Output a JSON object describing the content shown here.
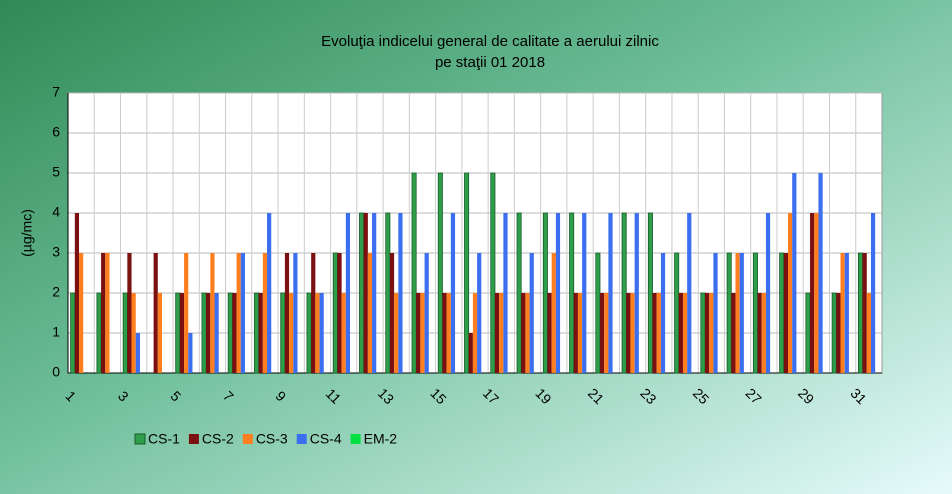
{
  "chart_data": {
    "type": "bar",
    "title": "Evoluţia indicelui general de calitate a aerului zilnic",
    "subtitle": "pe staţii 01 2018",
    "y_label": "(µg/mc)",
    "categories": [
      1,
      null,
      3,
      null,
      5,
      null,
      7,
      null,
      9,
      null,
      11,
      null,
      13,
      null,
      15,
      null,
      17,
      null,
      19,
      null,
      21,
      null,
      23,
      null,
      25,
      null,
      27,
      null,
      29,
      null,
      31
    ],
    "series": [
      {
        "name": "CS-1",
        "color": "#2e9e4a",
        "values": [
          2,
          2,
          2,
          null,
          2,
          2,
          2,
          2,
          2,
          2,
          3,
          4,
          4,
          5,
          5,
          5,
          5,
          4,
          4,
          4,
          3,
          4,
          4,
          3,
          2,
          3,
          3,
          3,
          2,
          2,
          3
        ]
      },
      {
        "name": "CS-2",
        "color": "#7b1010",
        "values": [
          4,
          3,
          3,
          3,
          2,
          2,
          2,
          2,
          3,
          3,
          3,
          4,
          3,
          2,
          2,
          1,
          2,
          2,
          2,
          2,
          2,
          2,
          2,
          2,
          2,
          2,
          2,
          3,
          4,
          2,
          3
        ]
      },
      {
        "name": "CS-3",
        "color": "#ff7f1e",
        "values": [
          3,
          3,
          2,
          2,
          3,
          3,
          3,
          3,
          2,
          2,
          2,
          3,
          2,
          2,
          2,
          2,
          2,
          2,
          3,
          2,
          2,
          2,
          2,
          2,
          2,
          3,
          2,
          4,
          4,
          3,
          2
        ]
      },
      {
        "name": "CS-4",
        "color": "#3b6ff0",
        "values": [
          null,
          null,
          1,
          null,
          1,
          2,
          3,
          4,
          3,
          2,
          4,
          4,
          4,
          3,
          4,
          3,
          4,
          3,
          4,
          4,
          4,
          4,
          3,
          4,
          3,
          3,
          4,
          5,
          5,
          3,
          4
        ]
      },
      {
        "name": "EM-2",
        "color": "#00e040",
        "values": [
          null,
          null,
          null,
          null,
          null,
          null,
          null,
          null,
          null,
          null,
          null,
          null,
          null,
          null,
          null,
          null,
          null,
          null,
          null,
          null,
          null,
          null,
          null,
          null,
          null,
          null,
          null,
          null,
          null,
          null,
          null
        ]
      }
    ],
    "ylim": [
      0,
      7
    ],
    "yticks": [
      0,
      1,
      2,
      3,
      4,
      5,
      6,
      7
    ],
    "grid": true,
    "legend": "bottom-left"
  }
}
